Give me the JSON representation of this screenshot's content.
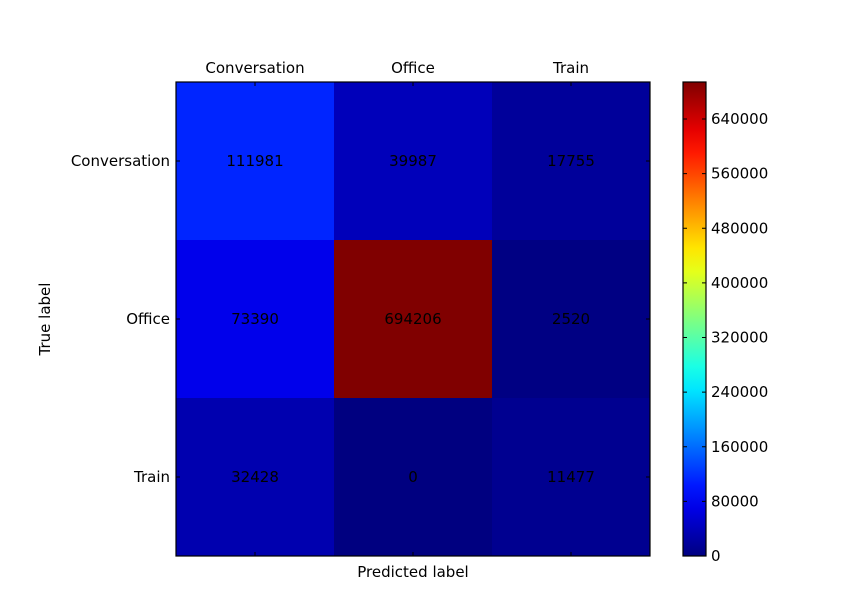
{
  "chart_data": {
    "type": "heatmap",
    "title": "",
    "xlabel": "Predicted label",
    "ylabel": "True label",
    "x_categories": [
      "Conversation",
      "Office",
      "Train"
    ],
    "y_categories": [
      "Conversation",
      "Office",
      "Train"
    ],
    "x_axis_position": "top",
    "values": [
      [
        111981,
        39987,
        17755
      ],
      [
        73390,
        694206,
        2520
      ],
      [
        32428,
        0,
        11477
      ]
    ],
    "colormap": "jet",
    "colorbar": {
      "min": 0,
      "max": 694206,
      "ticks": [
        0,
        80000,
        160000,
        240000,
        320000,
        400000,
        480000,
        560000,
        640000
      ],
      "tick_labels": [
        "0",
        "80000",
        "160000",
        "240000",
        "320000",
        "400000",
        "480000",
        "560000",
        "640000"
      ]
    },
    "grid": false
  }
}
